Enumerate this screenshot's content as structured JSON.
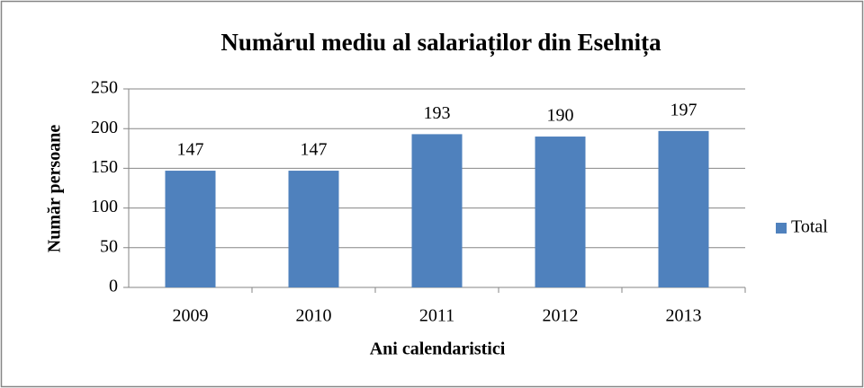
{
  "chart_data": {
    "type": "bar",
    "title": "Numărul mediu al salariaților din Eselnița",
    "x_label": "Ani calendaristici",
    "y_label": "Număr persoane",
    "categories": [
      "2009",
      "2010",
      "2011",
      "2012",
      "2013"
    ],
    "series": [
      {
        "name": "Total",
        "color": "#4f81bd",
        "values": [
          147,
          147,
          193,
          190,
          197
        ]
      }
    ],
    "ylim": [
      0,
      250
    ],
    "yticks": [
      0,
      50,
      100,
      150,
      200,
      250
    ],
    "grid": true,
    "legend": "right"
  }
}
